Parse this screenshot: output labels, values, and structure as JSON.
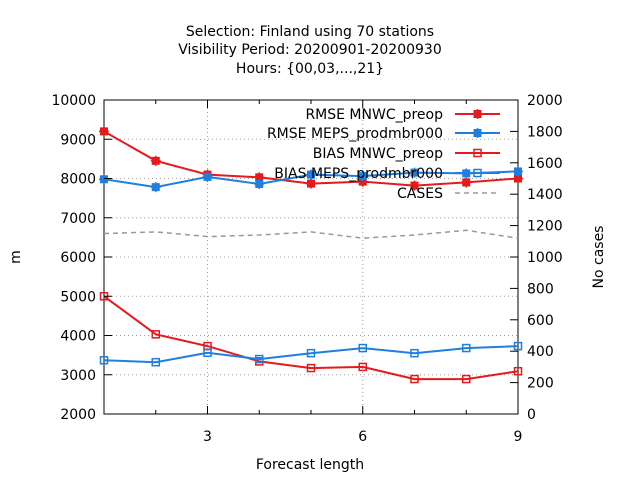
{
  "chart_data": {
    "type": "line",
    "title_lines": [
      "Selection: Finland using    70 stations",
      "Visibility   Period: 20200901-20200930",
      "Hours: {00,03,...,21}"
    ],
    "xlabel": "Forecast length",
    "ylabel": "m",
    "y2label": "No cases",
    "xlim": [
      1,
      9
    ],
    "ylim": [
      2000,
      10000
    ],
    "y2lim": [
      0,
      2000
    ],
    "xticks": [
      3,
      6,
      9
    ],
    "yticks": [
      2000,
      3000,
      4000,
      5000,
      6000,
      7000,
      8000,
      9000,
      10000
    ],
    "y2ticks": [
      0,
      200,
      400,
      600,
      800,
      1000,
      1200,
      1400,
      1600,
      1800,
      2000
    ],
    "grid": true,
    "legend_position": "top-right",
    "x": [
      1,
      2,
      3,
      4,
      5,
      6,
      7,
      8,
      9
    ],
    "series": [
      {
        "name": "RMSE MNWC_preop",
        "axis": "y",
        "color": "#e41a1c",
        "marker": "filled-square",
        "dash": false,
        "values": [
          9200,
          8450,
          8100,
          8030,
          7870,
          7920,
          7820,
          7900,
          8000
        ]
      },
      {
        "name": "RMSE MEPS_prodmbr000",
        "axis": "y",
        "color": "#1f7fe0",
        "marker": "filled-square",
        "dash": false,
        "values": [
          7980,
          7780,
          8040,
          7860,
          8100,
          8060,
          8150,
          8130,
          8180
        ]
      },
      {
        "name": "BIAS MNWC_preop",
        "axis": "y",
        "color": "#e41a1c",
        "marker": "open-square",
        "dash": false,
        "values": [
          5000,
          4030,
          3730,
          3340,
          3170,
          3200,
          2890,
          2890,
          3090
        ]
      },
      {
        "name": "BIAS MEPS_prodmbr000",
        "axis": "y",
        "color": "#1f7fe0",
        "marker": "open-square",
        "dash": false,
        "values": [
          3370,
          3320,
          3560,
          3400,
          3550,
          3680,
          3550,
          3680,
          3730
        ]
      },
      {
        "name": "CASES",
        "axis": "y2",
        "color": "#999999",
        "marker": "none",
        "dash": true,
        "values": [
          1150,
          1160,
          1130,
          1140,
          1160,
          1120,
          1140,
          1170,
          1120
        ]
      }
    ]
  }
}
